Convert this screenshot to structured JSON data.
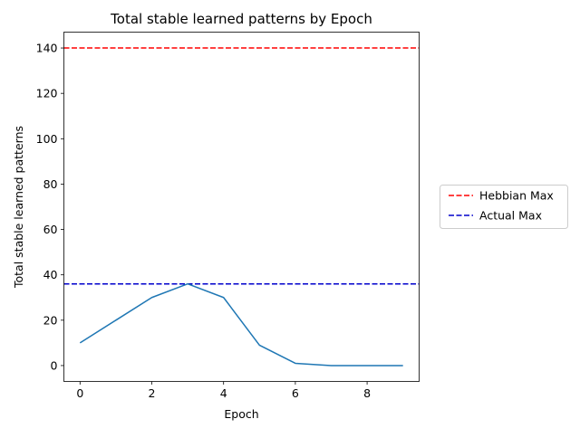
{
  "chart_data": {
    "type": "line",
    "title": "Total stable learned patterns by Epoch",
    "xlabel": "Epoch",
    "ylabel": "Total stable learned patterns",
    "xlim": [
      -0.45,
      9.45
    ],
    "ylim": [
      -7,
      147
    ],
    "x_ticks": [
      0,
      2,
      4,
      6,
      8
    ],
    "y_ticks": [
      0,
      20,
      40,
      60,
      80,
      100,
      120,
      140
    ],
    "grid": false,
    "legend_position": "outside-right",
    "series": [
      {
        "x": [
          0,
          1,
          2,
          3,
          4,
          5,
          6,
          7,
          8,
          9
        ],
        "values": [
          10,
          20,
          30,
          36,
          30,
          9,
          1,
          0,
          0,
          0
        ],
        "color": "#1f77b4",
        "style": "solid"
      }
    ],
    "reference_lines": [
      {
        "name": "Hebbian Max",
        "y": 140,
        "color": "#ff0000",
        "style": "dashed"
      },
      {
        "name": "Actual Max",
        "y": 36,
        "color": "#0000cc",
        "style": "dashed"
      }
    ]
  }
}
